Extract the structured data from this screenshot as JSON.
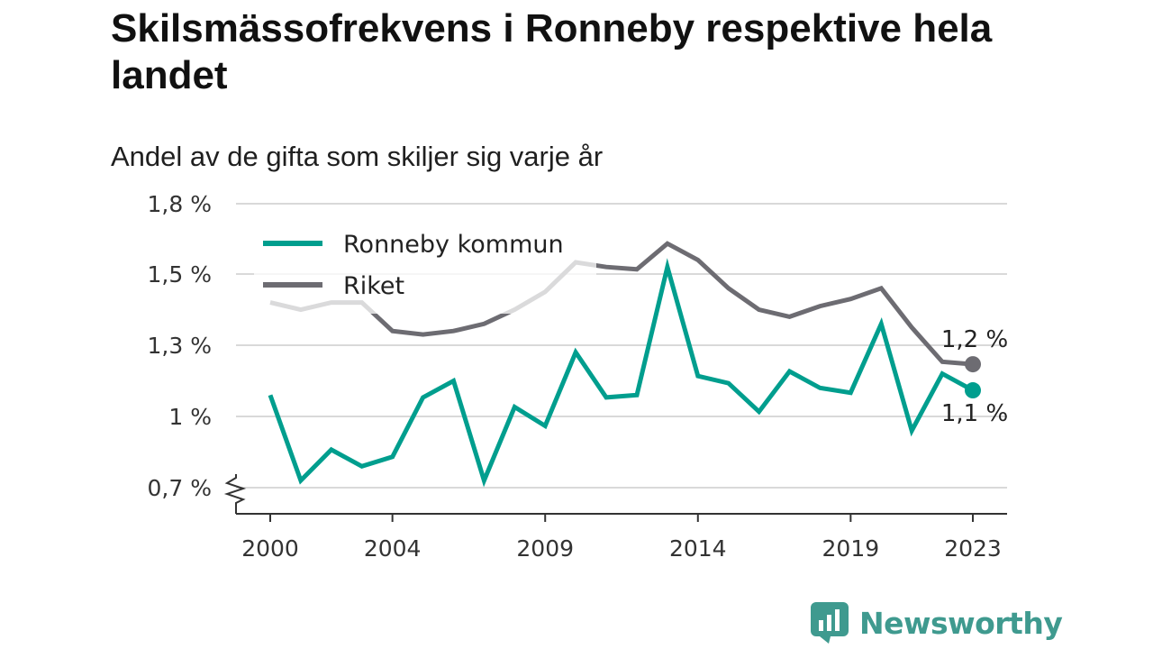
{
  "title": "Skilsmässofrekvens i Ronneby respektive hela landet",
  "subtitle": "Andel av de gifta som skiljer sig varje år",
  "brand": {
    "name": "Newsworthy"
  },
  "colors": {
    "ronneby": "#009e8e",
    "riket": "#6d6c72",
    "grid": "#d9d9d9",
    "axis": "#333333",
    "brand": "#3f9a8f"
  },
  "chart_data": {
    "type": "line",
    "ylim": [
      0.62,
      1.88
    ],
    "y_ticks": [
      0.7,
      1.0,
      1.3,
      1.5,
      1.8
    ],
    "y_tick_labels": [
      "0,7 %",
      "1 %",
      "1,3 %",
      "1,5 %",
      "1,8 %"
    ],
    "y_axis_break": true,
    "x_ticks": [
      2000,
      2004,
      2009,
      2014,
      2019,
      2023
    ],
    "x_tick_labels": [
      "2000",
      "2004",
      "2009",
      "2014",
      "2019",
      "2023"
    ],
    "x": [
      2000,
      2001,
      2002,
      2003,
      2004,
      2005,
      2006,
      2007,
      2008,
      2009,
      2010,
      2011,
      2012,
      2013,
      2014,
      2015,
      2016,
      2017,
      2018,
      2019,
      2020,
      2021,
      2022,
      2023
    ],
    "legend_position": "top-left",
    "series": [
      {
        "name": "Ronneby kommun",
        "key": "ronneby",
        "values": [
          1.09,
          0.73,
          0.86,
          0.79,
          0.83,
          1.08,
          1.15,
          0.73,
          1.04,
          0.96,
          1.27,
          1.08,
          1.09,
          1.53,
          1.17,
          1.14,
          1.02,
          1.19,
          1.12,
          1.1,
          1.36,
          0.94,
          1.18,
          1.11
        ],
        "end_label": "1,1 %"
      },
      {
        "name": "Riket",
        "key": "riket",
        "values": [
          1.42,
          1.4,
          1.42,
          1.42,
          1.34,
          1.33,
          1.34,
          1.36,
          1.4,
          1.45,
          1.55,
          1.53,
          1.52,
          1.63,
          1.56,
          1.46,
          1.4,
          1.38,
          1.41,
          1.43,
          1.46,
          1.35,
          1.23,
          1.22
        ],
        "end_label": "1,2 %"
      }
    ]
  }
}
